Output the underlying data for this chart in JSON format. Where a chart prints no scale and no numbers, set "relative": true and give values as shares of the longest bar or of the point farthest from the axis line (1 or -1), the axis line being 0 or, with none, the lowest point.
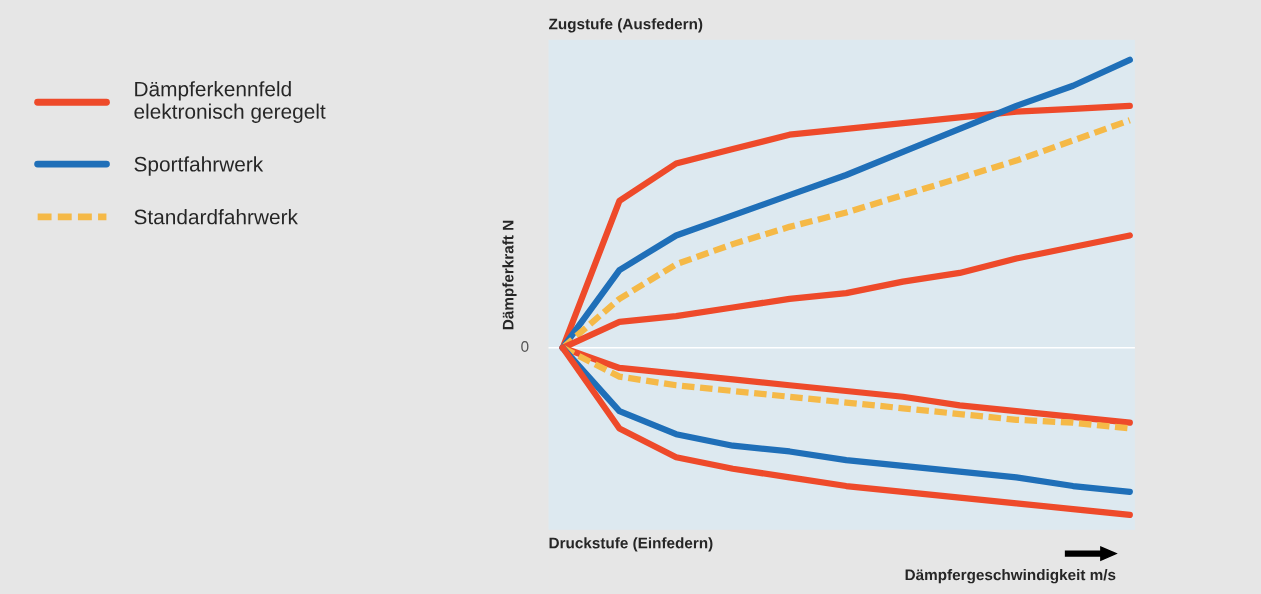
{
  "chart_data": {
    "type": "line",
    "relative": true,
    "xlabel": "Dämpfergeschwindigkeit m/s",
    "ylabel": "Dämpferkraft N",
    "annotations": [
      "Zugstufe (Ausfedern)",
      "Druckstufe (Einfedern)",
      "0"
    ],
    "categories": [
      null,
      null,
      null,
      null,
      null,
      null,
      null,
      null,
      null,
      null,
      null
    ],
    "legend": "left",
    "marker": "none",
    "series": [
      {
        "name": "Dämpferkennfeld\nelektronisch geregelt",
        "color": "#ee4a2a",
        "line_style": "solid",
        "values": [
          0,
          0.51,
          0.64,
          0.69,
          0.74,
          0.76,
          0.78,
          0.8,
          0.82,
          0.83,
          0.84
        ]
      },
      {
        "name": "Sportfahrwerk",
        "color": "#1f6fb8",
        "line_style": "solid",
        "values": [
          0,
          0.27,
          0.39,
          0.46,
          0.53,
          0.6,
          0.68,
          0.76,
          0.84,
          0.91,
          1
        ]
      },
      {
        "name": "Standardfahrwerk",
        "color": "#f5b947",
        "line_style": "dashed",
        "values": [
          0,
          0.17,
          0.29,
          0.36,
          0.42,
          0.47,
          0.53,
          0.59,
          0.65,
          0.72,
          0.79
        ]
      },
      {
        "color": "#ee4a2a",
        "line_style": "solid",
        "values": [
          0,
          0.09,
          0.11,
          0.14,
          0.17,
          0.19,
          0.23,
          0.26,
          0.31,
          0.35,
          0.39
        ]
      },
      {
        "color": "#ee4a2a",
        "line_style": "solid",
        "values": [
          0,
          -0.07,
          -0.09,
          -0.11,
          -0.13,
          -0.15,
          -0.17,
          -0.2,
          -0.22,
          -0.24,
          -0.26
        ]
      },
      {
        "color": "#f5b947",
        "line_style": "dashed",
        "values": [
          0,
          -0.1,
          -0.13,
          -0.15,
          -0.17,
          -0.19,
          -0.21,
          -0.23,
          -0.25,
          -0.26,
          -0.28
        ]
      },
      {
        "color": "#1f6fb8",
        "line_style": "solid",
        "values": [
          0,
          -0.22,
          -0.3,
          -0.34,
          -0.36,
          -0.39,
          -0.41,
          -0.43,
          -0.45,
          -0.48,
          -0.5
        ]
      },
      {
        "color": "#ee4a2a",
        "line_style": "solid",
        "values": [
          0,
          -0.28,
          -0.38,
          -0.42,
          -0.45,
          -0.48,
          -0.5,
          -0.52,
          -0.54,
          -0.56,
          -0.58
        ]
      }
    ]
  }
}
